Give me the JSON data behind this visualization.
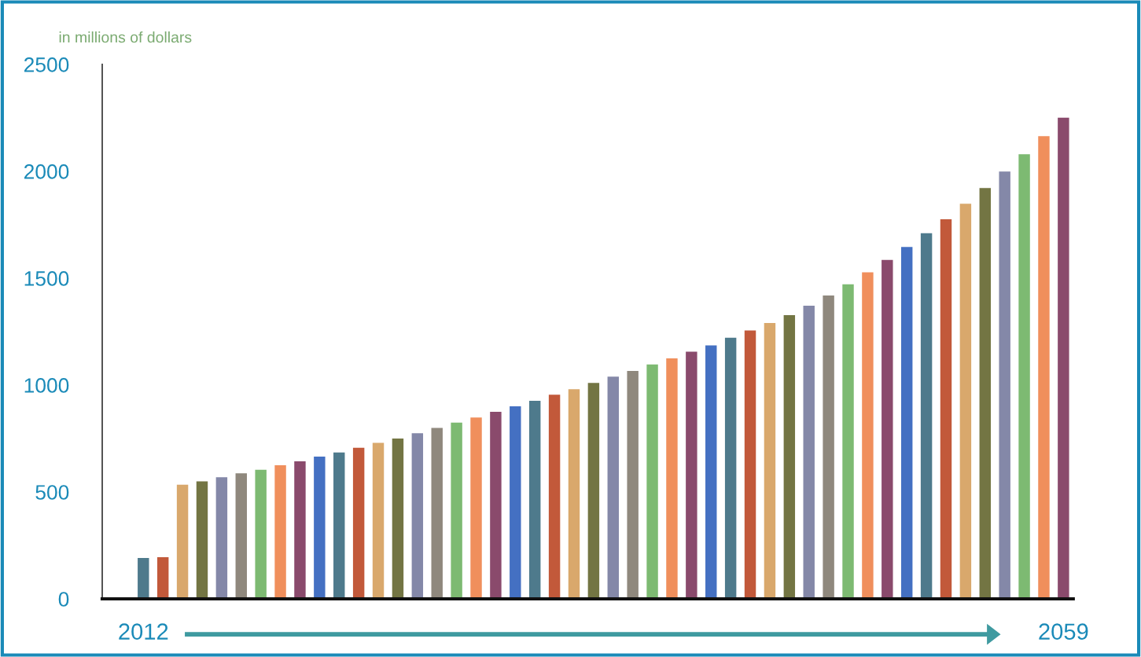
{
  "chart_data": {
    "type": "bar",
    "ylabel": "in millions of dollars",
    "categories": [
      "2012",
      null,
      null,
      null,
      null,
      null,
      null,
      null,
      null,
      null,
      null,
      null,
      null,
      null,
      null,
      null,
      null,
      null,
      null,
      null,
      null,
      null,
      null,
      null,
      null,
      null,
      null,
      null,
      null,
      null,
      null,
      null,
      null,
      null,
      null,
      null,
      null,
      null,
      null,
      null,
      null,
      null,
      null,
      null,
      null,
      null,
      null,
      "2059"
    ],
    "values": [
      191,
      195,
      534,
      550,
      569,
      587,
      604,
      625,
      643,
      665,
      685,
      707,
      730,
      750,
      775,
      800,
      824,
      848,
      875,
      901,
      926,
      955,
      981,
      1010,
      1039,
      1066,
      1096,
      1125,
      1156,
      1186,
      1221,
      1255,
      1290,
      1327,
      1371,
      1419,
      1471,
      1527,
      1585,
      1646,
      1710,
      1776,
      1848,
      1922,
      1999,
      2080,
      2164,
      2251
    ],
    "colors": [
      "#4e7a8c",
      "#c2593a",
      "#d9a86c",
      "#737543",
      "#8488a8",
      "#8f887d",
      "#7dba72",
      "#f08f5c",
      "#8a4a6c",
      "#4470c2",
      "#4e7a8c",
      "#c2593a",
      "#d9a86c",
      "#737543",
      "#8488a8",
      "#8f887d",
      "#7dba72",
      "#f08f5c",
      "#8a4a6c",
      "#4470c2",
      "#4e7a8c",
      "#c2593a",
      "#d9a86c",
      "#737543",
      "#8488a8",
      "#8f887d",
      "#7dba72",
      "#f08f5c",
      "#8a4a6c",
      "#4470c2",
      "#4e7a8c",
      "#c2593a",
      "#d9a86c",
      "#737543",
      "#8488a8",
      "#8f887d",
      "#7dba72",
      "#f08f5c",
      "#8a4a6c",
      "#4470c2",
      "#4e7a8c",
      "#c2593a",
      "#d9a86c",
      "#737543",
      "#8488a8",
      "#7dba72",
      "#f08f5c",
      "#8a4a6c"
    ],
    "ylim": [
      0,
      2500
    ],
    "yticks": [
      0,
      500,
      1000,
      1500,
      2000,
      2500
    ],
    "grid": false,
    "legend": false
  }
}
